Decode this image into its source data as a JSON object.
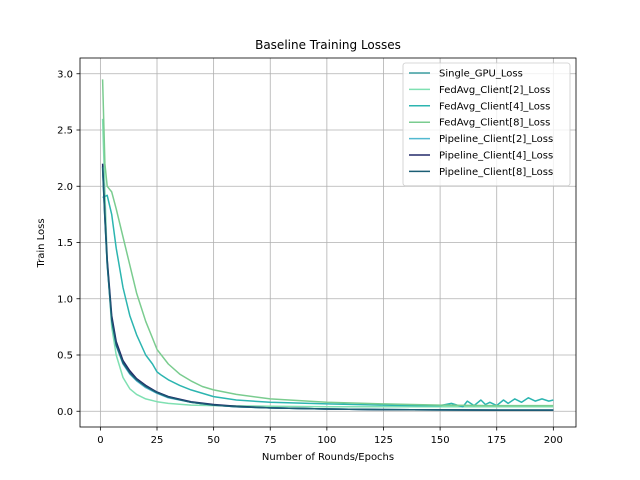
{
  "chart_data": {
    "type": "line",
    "title": "Baseline Training Losses",
    "xlabel": "Number of Rounds/Epochs",
    "ylabel": "Train Loss",
    "xlim": [
      -9,
      210
    ],
    "ylim": [
      -0.14,
      3.14
    ],
    "x_ticks": [
      0,
      25,
      50,
      75,
      100,
      125,
      150,
      175,
      200
    ],
    "y_ticks": [
      0.0,
      0.5,
      1.0,
      1.5,
      2.0,
      2.5,
      3.0
    ],
    "y_tick_labels": [
      "0.0",
      "0.5",
      "1.0",
      "1.5",
      "2.0",
      "2.5",
      "3.0"
    ],
    "grid": true,
    "legend_position": "top-right",
    "series": [
      {
        "name": "Single_GPU_Loss",
        "color": "#3b9ea0",
        "points": [
          [
            1,
            2.18
          ],
          [
            2,
            1.72
          ],
          [
            3,
            1.32
          ],
          [
            5,
            0.82
          ],
          [
            7,
            0.6
          ],
          [
            10,
            0.43
          ],
          [
            13,
            0.34
          ],
          [
            16,
            0.28
          ],
          [
            20,
            0.22
          ],
          [
            25,
            0.17
          ],
          [
            30,
            0.13
          ],
          [
            40,
            0.08
          ],
          [
            50,
            0.055
          ],
          [
            60,
            0.04
          ],
          [
            75,
            0.03
          ],
          [
            100,
            0.02
          ],
          [
            125,
            0.015
          ],
          [
            150,
            0.012
          ],
          [
            175,
            0.01
          ],
          [
            200,
            0.01
          ]
        ]
      },
      {
        "name": "FedAvg_Client[2]_Loss",
        "color": "#7fe0b2",
        "points": [
          [
            1,
            2.6
          ],
          [
            2,
            1.95
          ],
          [
            3,
            1.35
          ],
          [
            5,
            0.75
          ],
          [
            7,
            0.5
          ],
          [
            10,
            0.3
          ],
          [
            13,
            0.2
          ],
          [
            16,
            0.15
          ],
          [
            20,
            0.11
          ],
          [
            25,
            0.085
          ],
          [
            30,
            0.07
          ],
          [
            40,
            0.055
          ],
          [
            50,
            0.05
          ],
          [
            75,
            0.045
          ],
          [
            100,
            0.04
          ],
          [
            125,
            0.04
          ],
          [
            150,
            0.04
          ],
          [
            175,
            0.04
          ],
          [
            200,
            0.04
          ]
        ]
      },
      {
        "name": "FedAvg_Client[4]_Loss",
        "color": "#2cb5b0",
        "points": [
          [
            1,
            1.9
          ],
          [
            3,
            1.92
          ],
          [
            5,
            1.75
          ],
          [
            7,
            1.45
          ],
          [
            10,
            1.1
          ],
          [
            13,
            0.85
          ],
          [
            16,
            0.68
          ],
          [
            20,
            0.5
          ],
          [
            23,
            0.42
          ],
          [
            25,
            0.35
          ],
          [
            27,
            0.32
          ],
          [
            30,
            0.28
          ],
          [
            35,
            0.23
          ],
          [
            40,
            0.19
          ],
          [
            50,
            0.13
          ],
          [
            60,
            0.1
          ],
          [
            75,
            0.08
          ],
          [
            100,
            0.065
          ],
          [
            125,
            0.055
          ],
          [
            140,
            0.05
          ],
          [
            150,
            0.05
          ],
          [
            155,
            0.07
          ],
          [
            160,
            0.04
          ],
          [
            162,
            0.09
          ],
          [
            165,
            0.05
          ],
          [
            168,
            0.1
          ],
          [
            170,
            0.06
          ],
          [
            172,
            0.08
          ],
          [
            175,
            0.05
          ],
          [
            178,
            0.1
          ],
          [
            180,
            0.07
          ],
          [
            183,
            0.11
          ],
          [
            186,
            0.08
          ],
          [
            189,
            0.12
          ],
          [
            192,
            0.09
          ],
          [
            195,
            0.11
          ],
          [
            198,
            0.09
          ],
          [
            200,
            0.1
          ]
        ]
      },
      {
        "name": "FedAvg_Client[8]_Loss",
        "color": "#7acc8f",
        "points": [
          [
            1,
            2.95
          ],
          [
            2,
            2.2
          ],
          [
            3,
            2.0
          ],
          [
            5,
            1.95
          ],
          [
            7,
            1.8
          ],
          [
            10,
            1.55
          ],
          [
            13,
            1.3
          ],
          [
            16,
            1.05
          ],
          [
            20,
            0.8
          ],
          [
            23,
            0.65
          ],
          [
            25,
            0.55
          ],
          [
            30,
            0.42
          ],
          [
            35,
            0.33
          ],
          [
            40,
            0.27
          ],
          [
            45,
            0.22
          ],
          [
            50,
            0.19
          ],
          [
            60,
            0.15
          ],
          [
            75,
            0.11
          ],
          [
            100,
            0.08
          ],
          [
            125,
            0.065
          ],
          [
            150,
            0.055
          ],
          [
            175,
            0.05
          ],
          [
            200,
            0.05
          ]
        ]
      },
      {
        "name": "Pipeline_Client[2]_Loss",
        "color": "#52b9d0",
        "points": [
          [
            1,
            2.15
          ],
          [
            2,
            1.7
          ],
          [
            3,
            1.3
          ],
          [
            5,
            0.8
          ],
          [
            7,
            0.58
          ],
          [
            10,
            0.42
          ],
          [
            13,
            0.33
          ],
          [
            16,
            0.27
          ],
          [
            20,
            0.21
          ],
          [
            25,
            0.16
          ],
          [
            30,
            0.12
          ],
          [
            40,
            0.08
          ],
          [
            50,
            0.055
          ],
          [
            60,
            0.04
          ],
          [
            75,
            0.03
          ],
          [
            100,
            0.02
          ],
          [
            125,
            0.015
          ],
          [
            150,
            0.012
          ],
          [
            175,
            0.01
          ],
          [
            200,
            0.01
          ]
        ]
      },
      {
        "name": "Pipeline_Client[4]_Loss",
        "color": "#232a6a",
        "points": [
          [
            1,
            2.2
          ],
          [
            2,
            1.75
          ],
          [
            3,
            1.35
          ],
          [
            5,
            0.85
          ],
          [
            7,
            0.62
          ],
          [
            10,
            0.45
          ],
          [
            13,
            0.36
          ],
          [
            16,
            0.29
          ],
          [
            20,
            0.23
          ],
          [
            25,
            0.17
          ],
          [
            30,
            0.13
          ],
          [
            40,
            0.085
          ],
          [
            50,
            0.06
          ],
          [
            60,
            0.045
          ],
          [
            75,
            0.03
          ],
          [
            100,
            0.02
          ],
          [
            125,
            0.015
          ],
          [
            150,
            0.012
          ],
          [
            175,
            0.01
          ],
          [
            200,
            0.01
          ]
        ]
      },
      {
        "name": "Pipeline_Client[8]_Loss",
        "color": "#1b5e74",
        "points": [
          [
            1,
            2.17
          ],
          [
            2,
            1.71
          ],
          [
            3,
            1.31
          ],
          [
            5,
            0.81
          ],
          [
            7,
            0.59
          ],
          [
            10,
            0.43
          ],
          [
            13,
            0.34
          ],
          [
            16,
            0.28
          ],
          [
            20,
            0.22
          ],
          [
            25,
            0.165
          ],
          [
            30,
            0.125
          ],
          [
            40,
            0.08
          ],
          [
            50,
            0.055
          ],
          [
            60,
            0.04
          ],
          [
            75,
            0.03
          ],
          [
            100,
            0.02
          ],
          [
            125,
            0.015
          ],
          [
            150,
            0.012
          ],
          [
            175,
            0.01
          ],
          [
            200,
            0.01
          ]
        ]
      }
    ]
  }
}
